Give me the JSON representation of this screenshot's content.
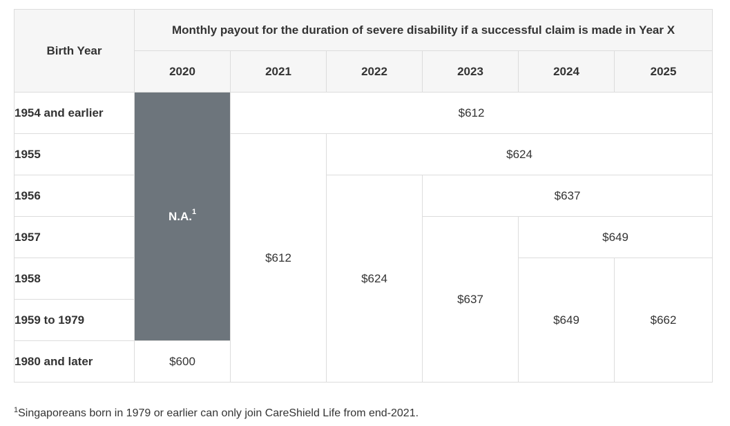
{
  "table": {
    "birth_year_header": "Birth Year",
    "merged_header": "Monthly payout for the duration of severe disability if a successful claim is made in Year X",
    "years": [
      "2020",
      "2021",
      "2022",
      "2023",
      "2024",
      "2025"
    ],
    "rows": [
      "1954 and earlier",
      "1955",
      "1956",
      "1957",
      "1958",
      "1959 to 1979",
      "1980 and later"
    ],
    "cells": {
      "na": "N.A.",
      "na_sup": "1",
      "r1954_2021_2025": "$612",
      "r1955_2022_2025": "$624",
      "r1956_2023_2025": "$637",
      "r1957_2024_2025": "$649",
      "r1955_1980_2021": "$612",
      "r1956_1980_2022": "$624",
      "r1957_1980_2023": "$637",
      "r1958_1980_2024": "$649",
      "r1958_1980_2025": "$662",
      "r1980_2020": "$600"
    }
  },
  "footnote": {
    "sup": "1",
    "text": "Singaporeans born in 1979 or earlier can only join CareShield Life from end-2021."
  }
}
